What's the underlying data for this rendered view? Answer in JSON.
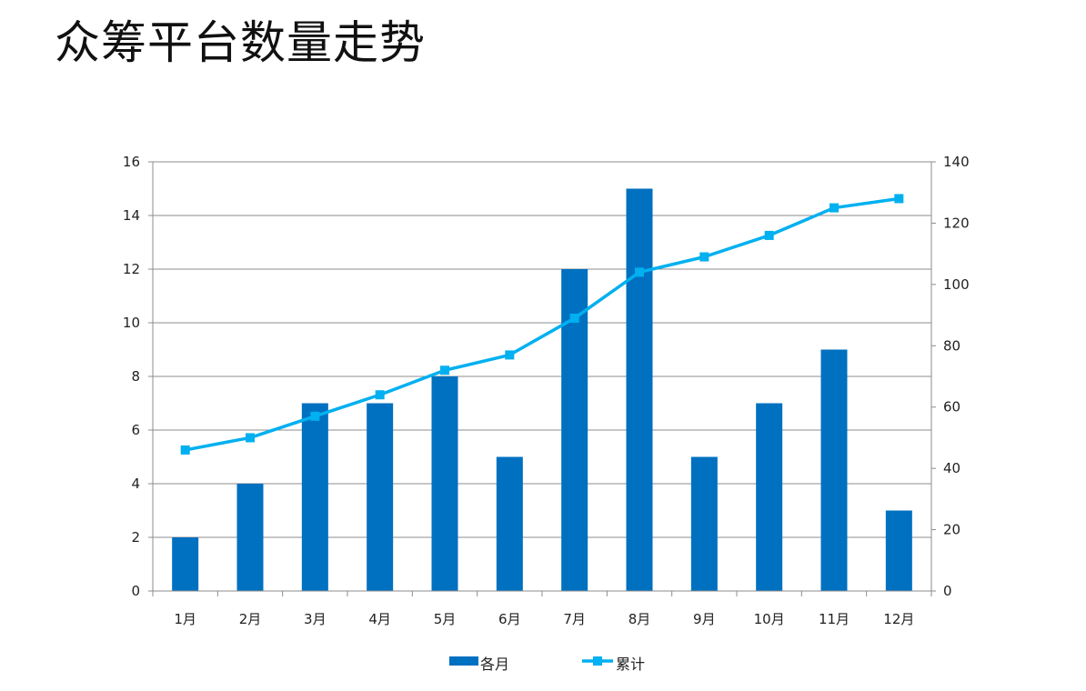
{
  "title": "众筹平台数量走势",
  "chart_data": {
    "type": "bar",
    "categories": [
      "1月",
      "2月",
      "3月",
      "4月",
      "5月",
      "6月",
      "7月",
      "8月",
      "9月",
      "10月",
      "11月",
      "12月"
    ],
    "series": [
      {
        "name": "各月",
        "type": "bar",
        "axis": "left",
        "color": "#0070c0",
        "values": [
          2,
          4,
          7,
          7,
          8,
          5,
          12,
          15,
          5,
          7,
          9,
          3
        ]
      },
      {
        "name": "累计",
        "type": "line",
        "axis": "right",
        "color": "#00b0f0",
        "values": [
          46,
          50,
          57,
          64,
          72,
          77,
          89,
          104,
          109,
          116,
          125,
          128
        ]
      }
    ],
    "y_left": {
      "min": 0,
      "max": 16,
      "step": 2,
      "ticks": [
        "0",
        "2",
        "4",
        "6",
        "8",
        "10",
        "12",
        "14",
        "16"
      ]
    },
    "y_right": {
      "min": 0,
      "max": 140,
      "step": 20,
      "ticks": [
        "0",
        "20",
        "40",
        "60",
        "80",
        "100",
        "120",
        "140"
      ]
    },
    "grid": true,
    "legend_position": "bottom"
  }
}
